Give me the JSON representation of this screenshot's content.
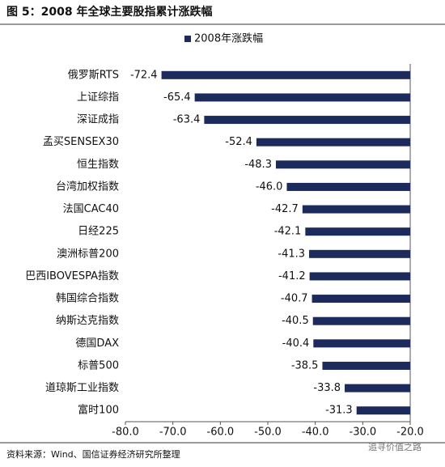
{
  "chart_data": {
    "type": "bar",
    "orientation": "horizontal",
    "title": "图 5：2008 年全球主要股指累计涨跌幅",
    "source": "资料来源：Wind、国信证券经济研究所整理",
    "watermark": "追寻价值之路",
    "categories": [
      "俄罗斯RTS",
      "上证综指",
      "深证成指",
      "孟买SENSEX30",
      "恒生指数",
      "台湾加权指数",
      "法国CAC40",
      "日经225",
      "澳洲标普200",
      "巴西IBOVESPA指数",
      "韩国综合指数",
      "纳斯达克指数",
      "德国DAX",
      "标普500",
      "道琼斯工业指数",
      "富时100"
    ],
    "series": [
      {
        "name": "2008年涨跌幅",
        "color": "#1c2a5c",
        "values": [
          -72.4,
          -65.4,
          -63.4,
          -52.4,
          -48.3,
          -46.0,
          -42.7,
          -42.1,
          -41.3,
          -41.2,
          -40.7,
          -40.5,
          -40.4,
          -38.5,
          -33.8,
          -31.3
        ],
        "value_labels": [
          "-72.4",
          "-65.4",
          "-63.4",
          "-52.4",
          "-48.3",
          "-46.0",
          "-42.7",
          "-42.1",
          "-41.3",
          "-41.2",
          "-40.7",
          "-40.5",
          "-40.4",
          "-38.5",
          "-33.8",
          "-31.3"
        ]
      }
    ],
    "xlim": [
      -80,
      -20
    ],
    "xticks": [
      {
        "value": -80,
        "label": "-80.0"
      },
      {
        "value": -70,
        "label": "-70.0"
      },
      {
        "value": -60,
        "label": "-60.0"
      },
      {
        "value": -50,
        "label": "-50.0"
      },
      {
        "value": -40,
        "label": "-40.0"
      },
      {
        "value": -30,
        "label": "-30.0"
      },
      {
        "value": -20,
        "label": "-20.0"
      }
    ],
    "legend": "top"
  }
}
